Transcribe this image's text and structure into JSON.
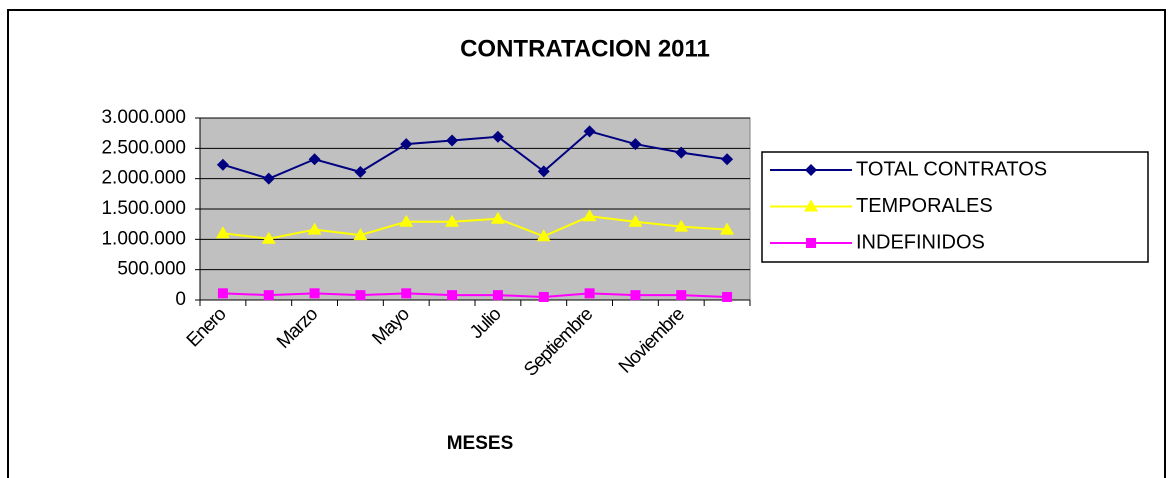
{
  "chart_data": {
    "type": "line",
    "title": "CONTRATACION 2011",
    "x_label": "MESES",
    "categories": [
      "Enero",
      null,
      "Marzo",
      null,
      "Mayo",
      null,
      "Julio",
      null,
      "Septiembre",
      null,
      "Noviembre",
      null
    ],
    "series": [
      {
        "name": "TOTAL CONTRATOS",
        "color": "#000080",
        "marker": "diamond",
        "values": [
          2230000,
          2000000,
          2320000,
          2110000,
          2570000,
          2630000,
          2690000,
          2120000,
          2780000,
          2570000,
          2430000,
          2320000
        ]
      },
      {
        "name": "TEMPORALES",
        "color": "#ffff00",
        "marker": "triangle",
        "values": [
          1100000,
          1010000,
          1160000,
          1070000,
          1290000,
          1290000,
          1340000,
          1050000,
          1380000,
          1290000,
          1210000,
          1160000
        ]
      },
      {
        "name": "INDEFINIDOS",
        "color": "#ff00ff",
        "marker": "square",
        "values": [
          110000,
          80000,
          110000,
          80000,
          110000,
          80000,
          80000,
          50000,
          110000,
          80000,
          80000,
          50000
        ]
      }
    ],
    "ylim": [
      0,
      3000000
    ],
    "yticks": [
      0,
      {
        "value": 500000,
        "label": "500.000"
      },
      {
        "value": 1000000,
        "label": "1.000.000"
      },
      {
        "value": 1500000,
        "label": "1.500.000"
      },
      {
        "value": 2000000,
        "label": "2.000.000"
      },
      {
        "value": 2500000,
        "label": "2.500.000"
      },
      {
        "value": 3000000,
        "label": "3.000.000"
      }
    ],
    "grid": true,
    "legend": "right"
  }
}
